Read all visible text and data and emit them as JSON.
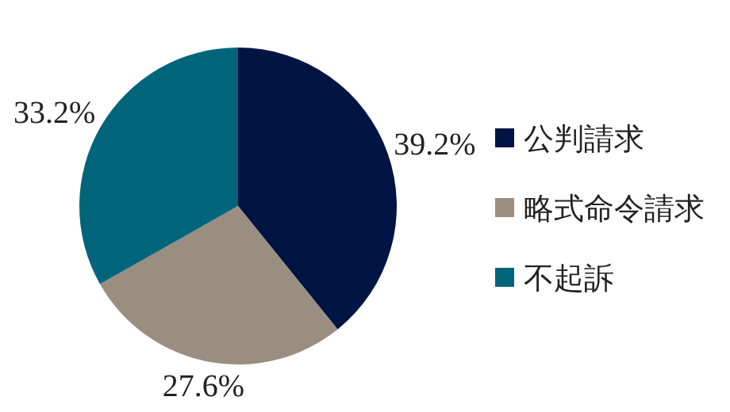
{
  "chart_data": {
    "type": "pie",
    "categories": [
      "公判請求",
      "略式命令請求",
      "不起訴"
    ],
    "values": [
      39.2,
      27.6,
      33.2
    ],
    "colors": [
      "#001443",
      "#9a8e80",
      "#00657b"
    ],
    "value_labels": [
      "39.2%",
      "27.6%",
      "33.2%"
    ],
    "legend": "right"
  }
}
